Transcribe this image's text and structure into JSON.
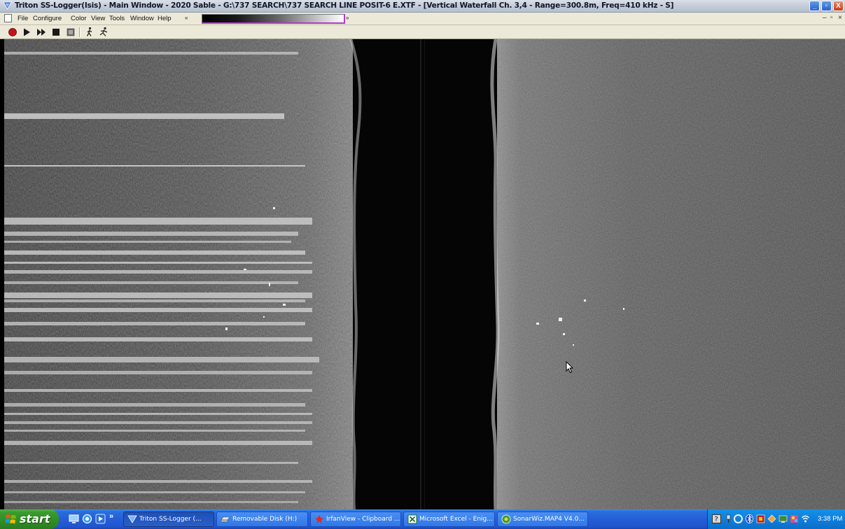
{
  "window": {
    "title": "Triton SS-Logger(Isis) - Main Window - 2020 Sable - G:\\737 SEARCH\\737 SEARCH LINE POSIT-6 E.XTF - [Vertical Waterfall Ch. 3,4 - Range=300.8m, Freq=410 kHz - S]",
    "minimize_glyph": "_",
    "maximize_glyph": "▫",
    "close_glyph": "X"
  },
  "menu": {
    "items": [
      "File",
      "Configure",
      "Color",
      "View",
      "Tools",
      "Window",
      "Help"
    ],
    "palette_left_arrow": "«",
    "palette_right_arrow": "»",
    "mdi_min": "–",
    "mdi_restore": "▫",
    "mdi_close": "×"
  },
  "toolbar": {
    "buttons": [
      "record",
      "play",
      "fast-forward",
      "stop",
      "pause",
      "walk",
      "run"
    ]
  },
  "sonar": {
    "channel_info": "Vertical Waterfall Ch. 3,4",
    "range": "300.8m",
    "frequency": "410 kHz"
  },
  "taskbar": {
    "start_label": "start",
    "quick_launch_more": "»",
    "tasks": [
      {
        "label": "Triton SS-Logger (...",
        "icon": "triton-icon",
        "active": true
      },
      {
        "label": "Removable Disk (H:)",
        "icon": "drive-icon",
        "active": false
      },
      {
        "label": "IrfanView - Clipboard ...",
        "icon": "irfanview-icon",
        "active": false
      },
      {
        "label": "Microsoft Excel - Enig...",
        "icon": "excel-icon",
        "active": false
      },
      {
        "label": "SonarWiz.MAP4 V4.0...",
        "icon": "sonarwiz-icon",
        "active": false
      }
    ],
    "clock": "3:38 PM"
  },
  "colors": {
    "xp_blue": "#245ed8",
    "start_green": "#3a9a2f",
    "tray_blue": "#0f7fdc",
    "menu_face": "#ece9d8"
  }
}
